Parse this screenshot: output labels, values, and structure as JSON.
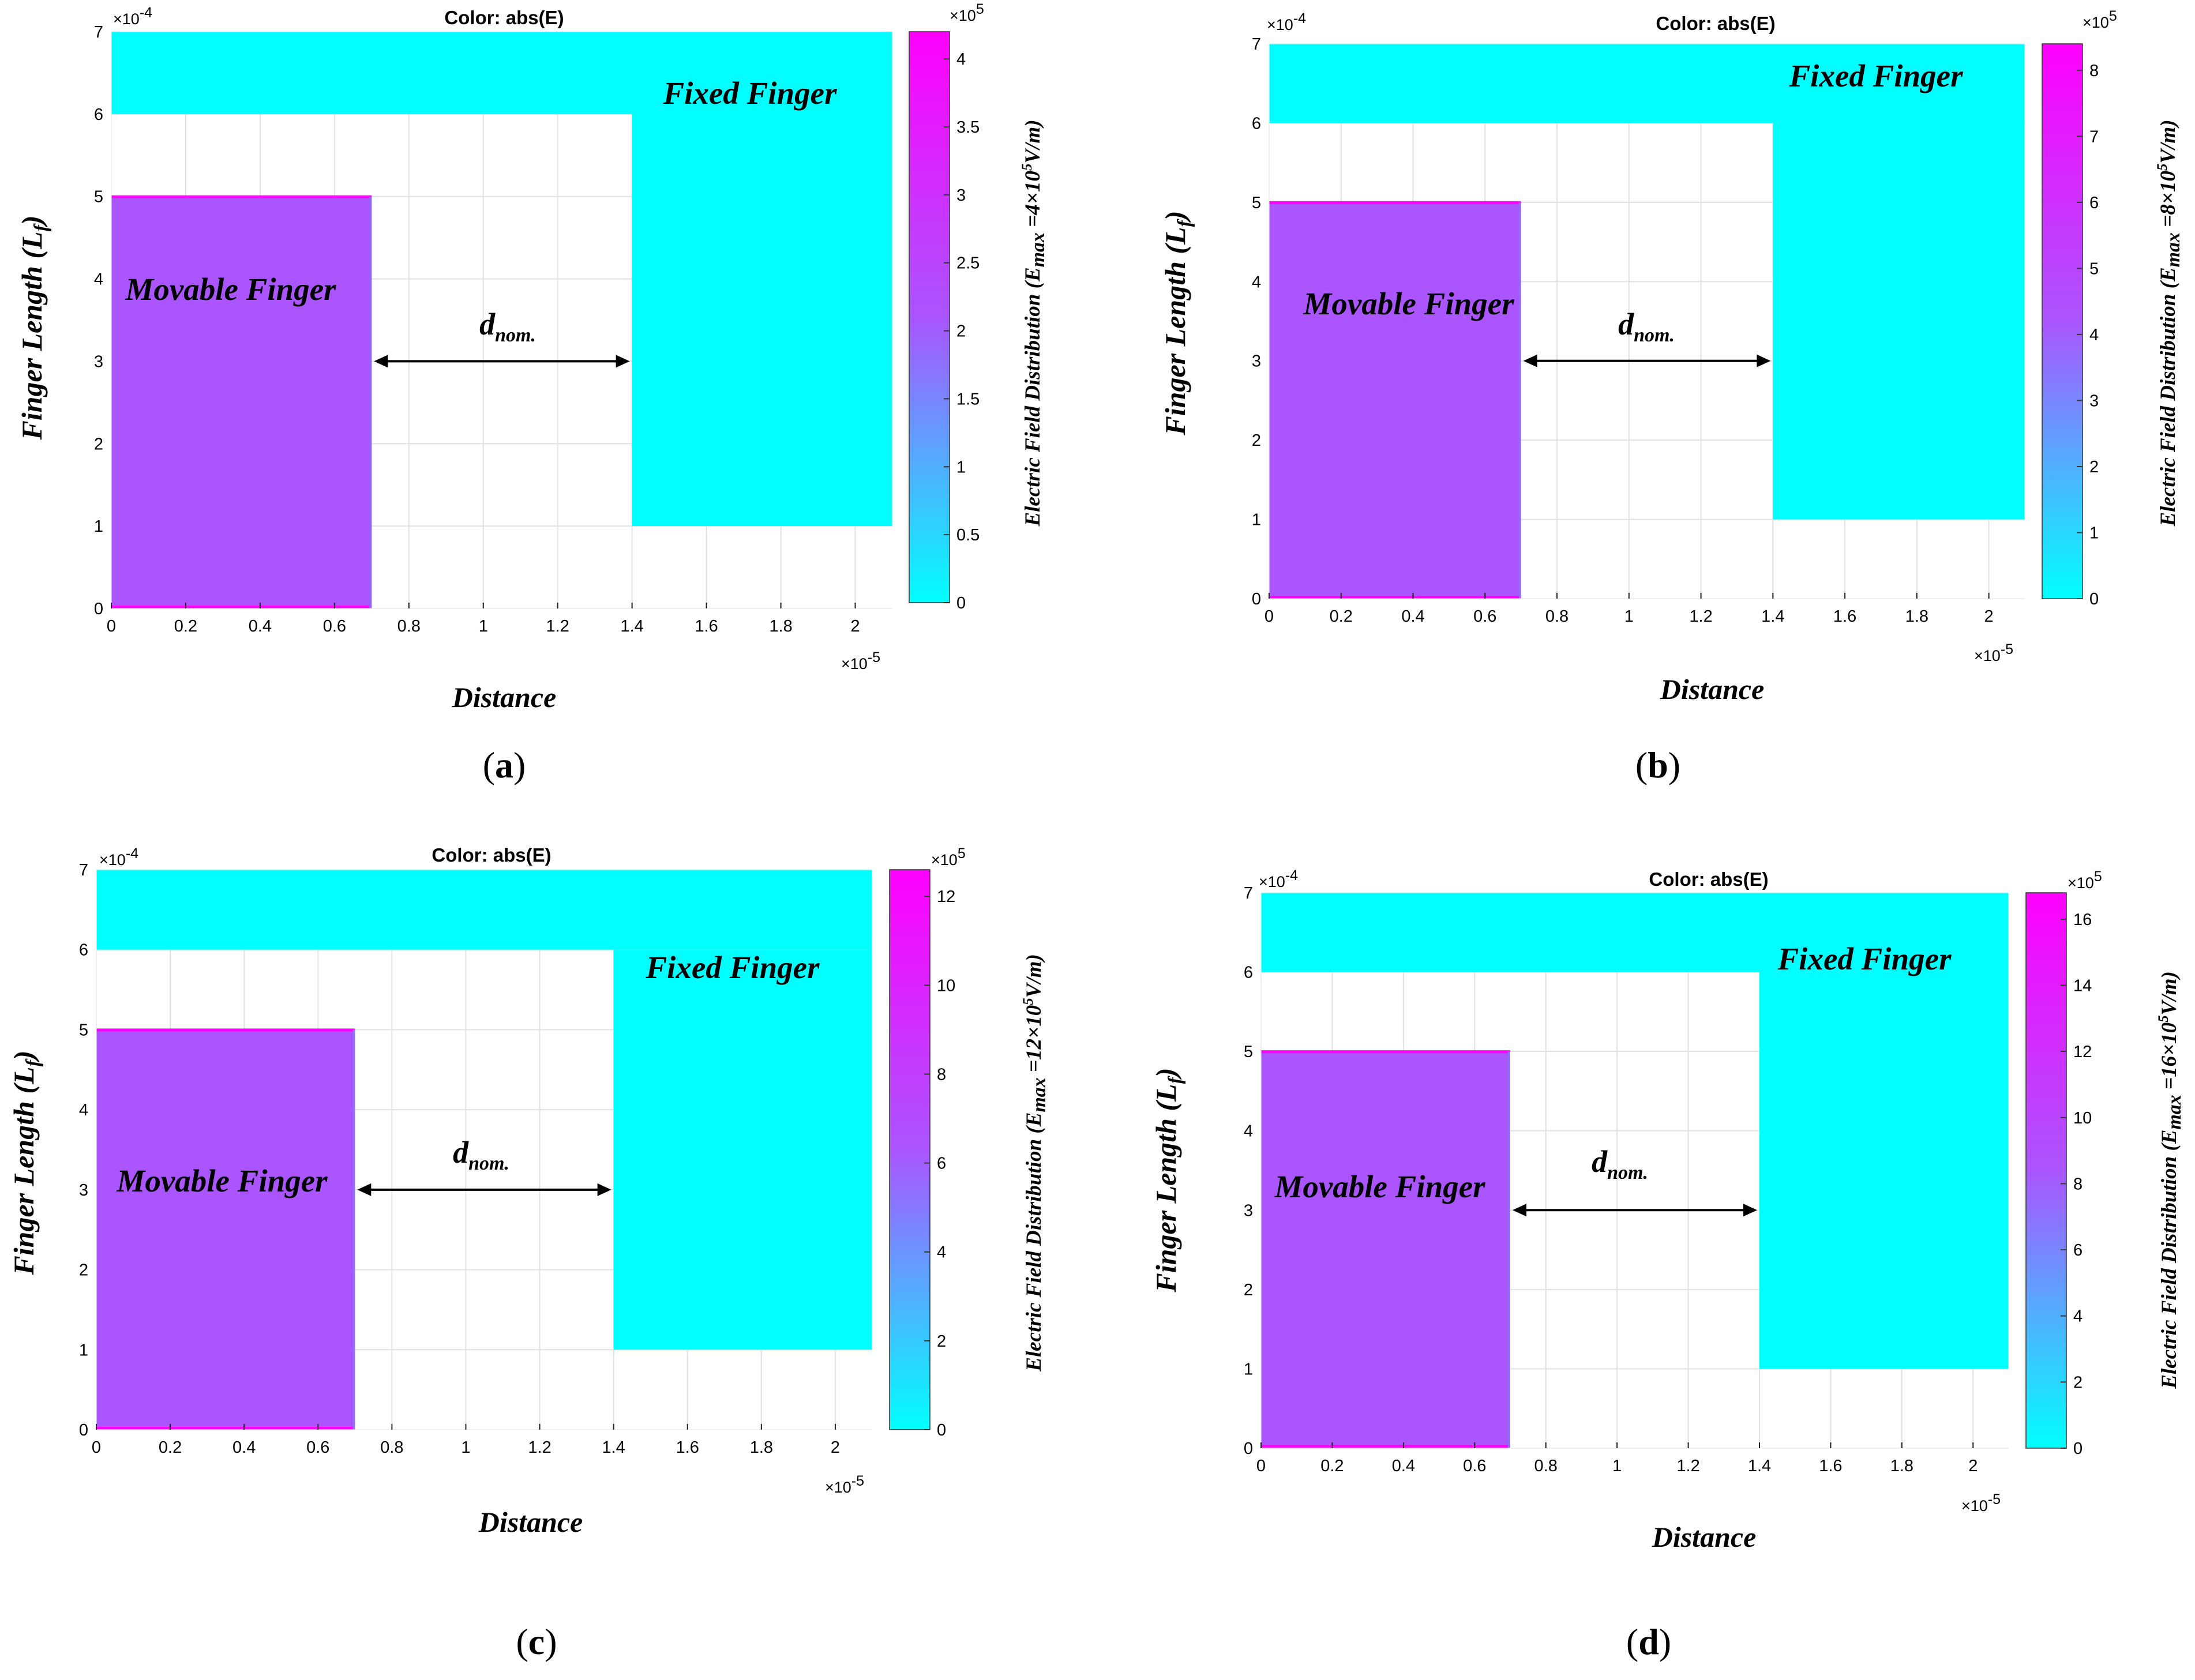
{
  "colors": {
    "fixed_finger": "#00FFFF",
    "movable_finger": "#AA55FF",
    "colormap_low": "#00FFFF",
    "colormap_mid": "#AA55FF",
    "colormap_high": "#FF00FF",
    "arrow": "#000000"
  },
  "panels": [
    {
      "label_open": "(",
      "label_letter": "a",
      "label_close": ")",
      "title": "Color: abs(E)",
      "xlabel": "Distance",
      "ylabel": "Finger Length (L",
      "ylabel_sub": "f",
      "ylabel_close": ")",
      "fixed_label": "Fixed Finger",
      "movable_label": "Movable Finger",
      "gap_label": "d",
      "gap_sub": "nom.",
      "x_multiplier": "×10",
      "x_exponent": "-5",
      "y_multiplier": "×10",
      "y_exponent": "-4",
      "cb_multiplier": "×10",
      "cb_exponent": "5",
      "cb_label": "Electric Field Distribution (E",
      "cb_label_sub": "max",
      "cb_label_rest": " =4×10",
      "cb_label_sup": "5",
      "cb_label_end": "V/m)",
      "chart_data": {
        "type": "heatmap",
        "title": "Color: abs(E)",
        "xlabel": "Distance",
        "ylabel": "Finger Length (Lf)",
        "xlim": [
          0,
          2.1
        ],
        "ylim": [
          0,
          7
        ],
        "xticks": [
          0,
          0.2,
          0.4,
          0.6,
          0.8,
          1,
          1.2,
          1.4,
          1.6,
          1.8,
          2
        ],
        "yticks": [
          0,
          1,
          2,
          3,
          4,
          5,
          6,
          7
        ],
        "regions": [
          {
            "name": "Movable Finger",
            "x": [
              0,
              0.7
            ],
            "y": [
              0,
              5
            ],
            "field_level": 0.72
          },
          {
            "name": "Fixed Finger (base)",
            "x": [
              0,
              2.1
            ],
            "y": [
              6,
              7
            ],
            "field_level": 0
          },
          {
            "name": "Fixed Finger",
            "x": [
              1.4,
              2.1
            ],
            "y": [
              1,
              6
            ],
            "field_level": 0
          }
        ],
        "gap": {
          "label": "dnom.",
          "x": [
            0.7,
            1.4
          ],
          "y": 3
        },
        "colorbar": {
          "range": [
            0,
            4.2
          ],
          "ticks": [
            "0",
            "0.5",
            "1",
            "1.5",
            "2",
            "2.5",
            "3",
            "3.5",
            "4"
          ],
          "tick_values": [
            0,
            0.5,
            1,
            1.5,
            2,
            2.5,
            3,
            3.5,
            4
          ],
          "label": "Electric Field Distribution (Emax =4×10^5 V/m)"
        }
      }
    },
    {
      "label_open": "(",
      "label_letter": "b",
      "label_close": ")",
      "title": "Color: abs(E)",
      "xlabel": "Distance",
      "ylabel": "Finger Length (L",
      "ylabel_sub": "f",
      "ylabel_close": ")",
      "fixed_label": "Fixed Finger",
      "movable_label": "Movable Finger",
      "gap_label": "d",
      "gap_sub": "nom.",
      "x_multiplier": "×10",
      "x_exponent": "-5",
      "y_multiplier": "×10",
      "y_exponent": "-4",
      "cb_multiplier": "×10",
      "cb_exponent": "5",
      "cb_label": "Electric Field Distribution (E",
      "cb_label_sub": "max",
      "cb_label_rest": " =8×10",
      "cb_label_sup": "5",
      "cb_label_end": "V/m)",
      "chart_data": {
        "type": "heatmap",
        "title": "Color: abs(E)",
        "xlabel": "Distance",
        "ylabel": "Finger Length (Lf)",
        "xlim": [
          0,
          2.1
        ],
        "ylim": [
          0,
          7
        ],
        "xticks": [
          0,
          0.2,
          0.4,
          0.6,
          0.8,
          1,
          1.2,
          1.4,
          1.6,
          1.8,
          2
        ],
        "yticks": [
          0,
          1,
          2,
          3,
          4,
          5,
          6,
          7
        ],
        "regions": [
          {
            "name": "Movable Finger",
            "x": [
              0,
              0.7
            ],
            "y": [
              0,
              5
            ],
            "field_level": 0.72
          },
          {
            "name": "Fixed Finger (base)",
            "x": [
              0,
              2.1
            ],
            "y": [
              6,
              7
            ],
            "field_level": 0
          },
          {
            "name": "Fixed Finger",
            "x": [
              1.4,
              2.1
            ],
            "y": [
              1,
              6
            ],
            "field_level": 0
          }
        ],
        "gap": {
          "label": "dnom.",
          "x": [
            0.7,
            1.4
          ],
          "y": 3
        },
        "colorbar": {
          "range": [
            0,
            8.4
          ],
          "ticks": [
            "0",
            "1",
            "2",
            "3",
            "4",
            "5",
            "6",
            "7",
            "8"
          ],
          "tick_values": [
            0,
            1,
            2,
            3,
            4,
            5,
            6,
            7,
            8
          ],
          "label": "Electric Field Distribution (Emax =8×10^5 V/m)"
        }
      }
    },
    {
      "label_open": "(",
      "label_letter": "c",
      "label_close": ")",
      "title": "Color: abs(E)",
      "xlabel": "Distance",
      "ylabel": "Finger Length (L",
      "ylabel_sub": "f",
      "ylabel_close": ")",
      "fixed_label": "Fixed Finger",
      "movable_label": "Movable Finger",
      "gap_label": "d",
      "gap_sub": "nom.",
      "x_multiplier": "×10",
      "x_exponent": "-5",
      "y_multiplier": "×10",
      "y_exponent": "-4",
      "cb_multiplier": "×10",
      "cb_exponent": "5",
      "cb_label": "Electric Field Distribution (E",
      "cb_label_sub": "max",
      "cb_label_rest": " =12×10",
      "cb_label_sup": "5",
      "cb_label_end": "V/m)",
      "chart_data": {
        "type": "heatmap",
        "title": "Color: abs(E)",
        "xlabel": "Distance",
        "ylabel": "Finger Length (Lf)",
        "xlim": [
          0,
          2.1
        ],
        "ylim": [
          0,
          7
        ],
        "xticks": [
          0,
          0.2,
          0.4,
          0.6,
          0.8,
          1,
          1.2,
          1.4,
          1.6,
          1.8,
          2
        ],
        "yticks": [
          0,
          1,
          2,
          3,
          4,
          5,
          6,
          7
        ],
        "regions": [
          {
            "name": "Movable Finger",
            "x": [
              0,
              0.7
            ],
            "y": [
              0,
              5
            ],
            "field_level": 0.72
          },
          {
            "name": "Fixed Finger (base)",
            "x": [
              0,
              2.1
            ],
            "y": [
              6,
              7
            ],
            "field_level": 0
          },
          {
            "name": "Fixed Finger",
            "x": [
              1.4,
              2.1
            ],
            "y": [
              1,
              6
            ],
            "field_level": 0
          }
        ],
        "gap": {
          "label": "dnom.",
          "x": [
            0.7,
            1.4
          ],
          "y": 3
        },
        "colorbar": {
          "range": [
            0,
            12.6
          ],
          "ticks": [
            "0",
            "2",
            "4",
            "6",
            "8",
            "10",
            "12"
          ],
          "tick_values": [
            0,
            2,
            4,
            6,
            8,
            10,
            12
          ],
          "label": "Electric Field Distribution (Emax =12×10^5 V/m)"
        }
      }
    },
    {
      "label_open": "(",
      "label_letter": "d",
      "label_close": ")",
      "title": "Color: abs(E)",
      "xlabel": "Distance",
      "ylabel": "Finger Length (L",
      "ylabel_sub": "f",
      "ylabel_close": ")",
      "fixed_label": "Fixed Finger",
      "movable_label": "Movable Finger",
      "gap_label": "d",
      "gap_sub": "nom.",
      "x_multiplier": "×10",
      "x_exponent": "-5",
      "y_multiplier": "×10",
      "y_exponent": "-4",
      "cb_multiplier": "×10",
      "cb_exponent": "5",
      "cb_label": "Electric Field Distribution (E",
      "cb_label_sub": "max",
      "cb_label_rest": " =16×10",
      "cb_label_sup": "5",
      "cb_label_end": "V/m)",
      "chart_data": {
        "type": "heatmap",
        "title": "Color: abs(E)",
        "xlabel": "Distance",
        "ylabel": "Finger Length (Lf)",
        "xlim": [
          0,
          2.1
        ],
        "ylim": [
          0,
          7
        ],
        "xticks": [
          0,
          0.2,
          0.4,
          0.6,
          0.8,
          1,
          1.2,
          1.4,
          1.6,
          1.8,
          2
        ],
        "yticks": [
          0,
          1,
          2,
          3,
          4,
          5,
          6,
          7
        ],
        "regions": [
          {
            "name": "Movable Finger",
            "x": [
              0,
              0.7
            ],
            "y": [
              0,
              5
            ],
            "field_level": 0.72
          },
          {
            "name": "Fixed Finger (base)",
            "x": [
              0,
              2.1
            ],
            "y": [
              6,
              7
            ],
            "field_level": 0
          },
          {
            "name": "Fixed Finger",
            "x": [
              1.4,
              2.1
            ],
            "y": [
              1,
              6
            ],
            "field_level": 0
          }
        ],
        "gap": {
          "label": "dnom.",
          "x": [
            0.7,
            1.4
          ],
          "y": 3
        },
        "colorbar": {
          "range": [
            0,
            16.8
          ],
          "ticks": [
            "0",
            "2",
            "4",
            "6",
            "8",
            "10",
            "12",
            "14",
            "16"
          ],
          "tick_values": [
            0,
            2,
            4,
            6,
            8,
            10,
            12,
            14,
            16
          ],
          "label": "Electric Field Distribution (Emax =16×10^5 V/m)"
        }
      }
    }
  ]
}
